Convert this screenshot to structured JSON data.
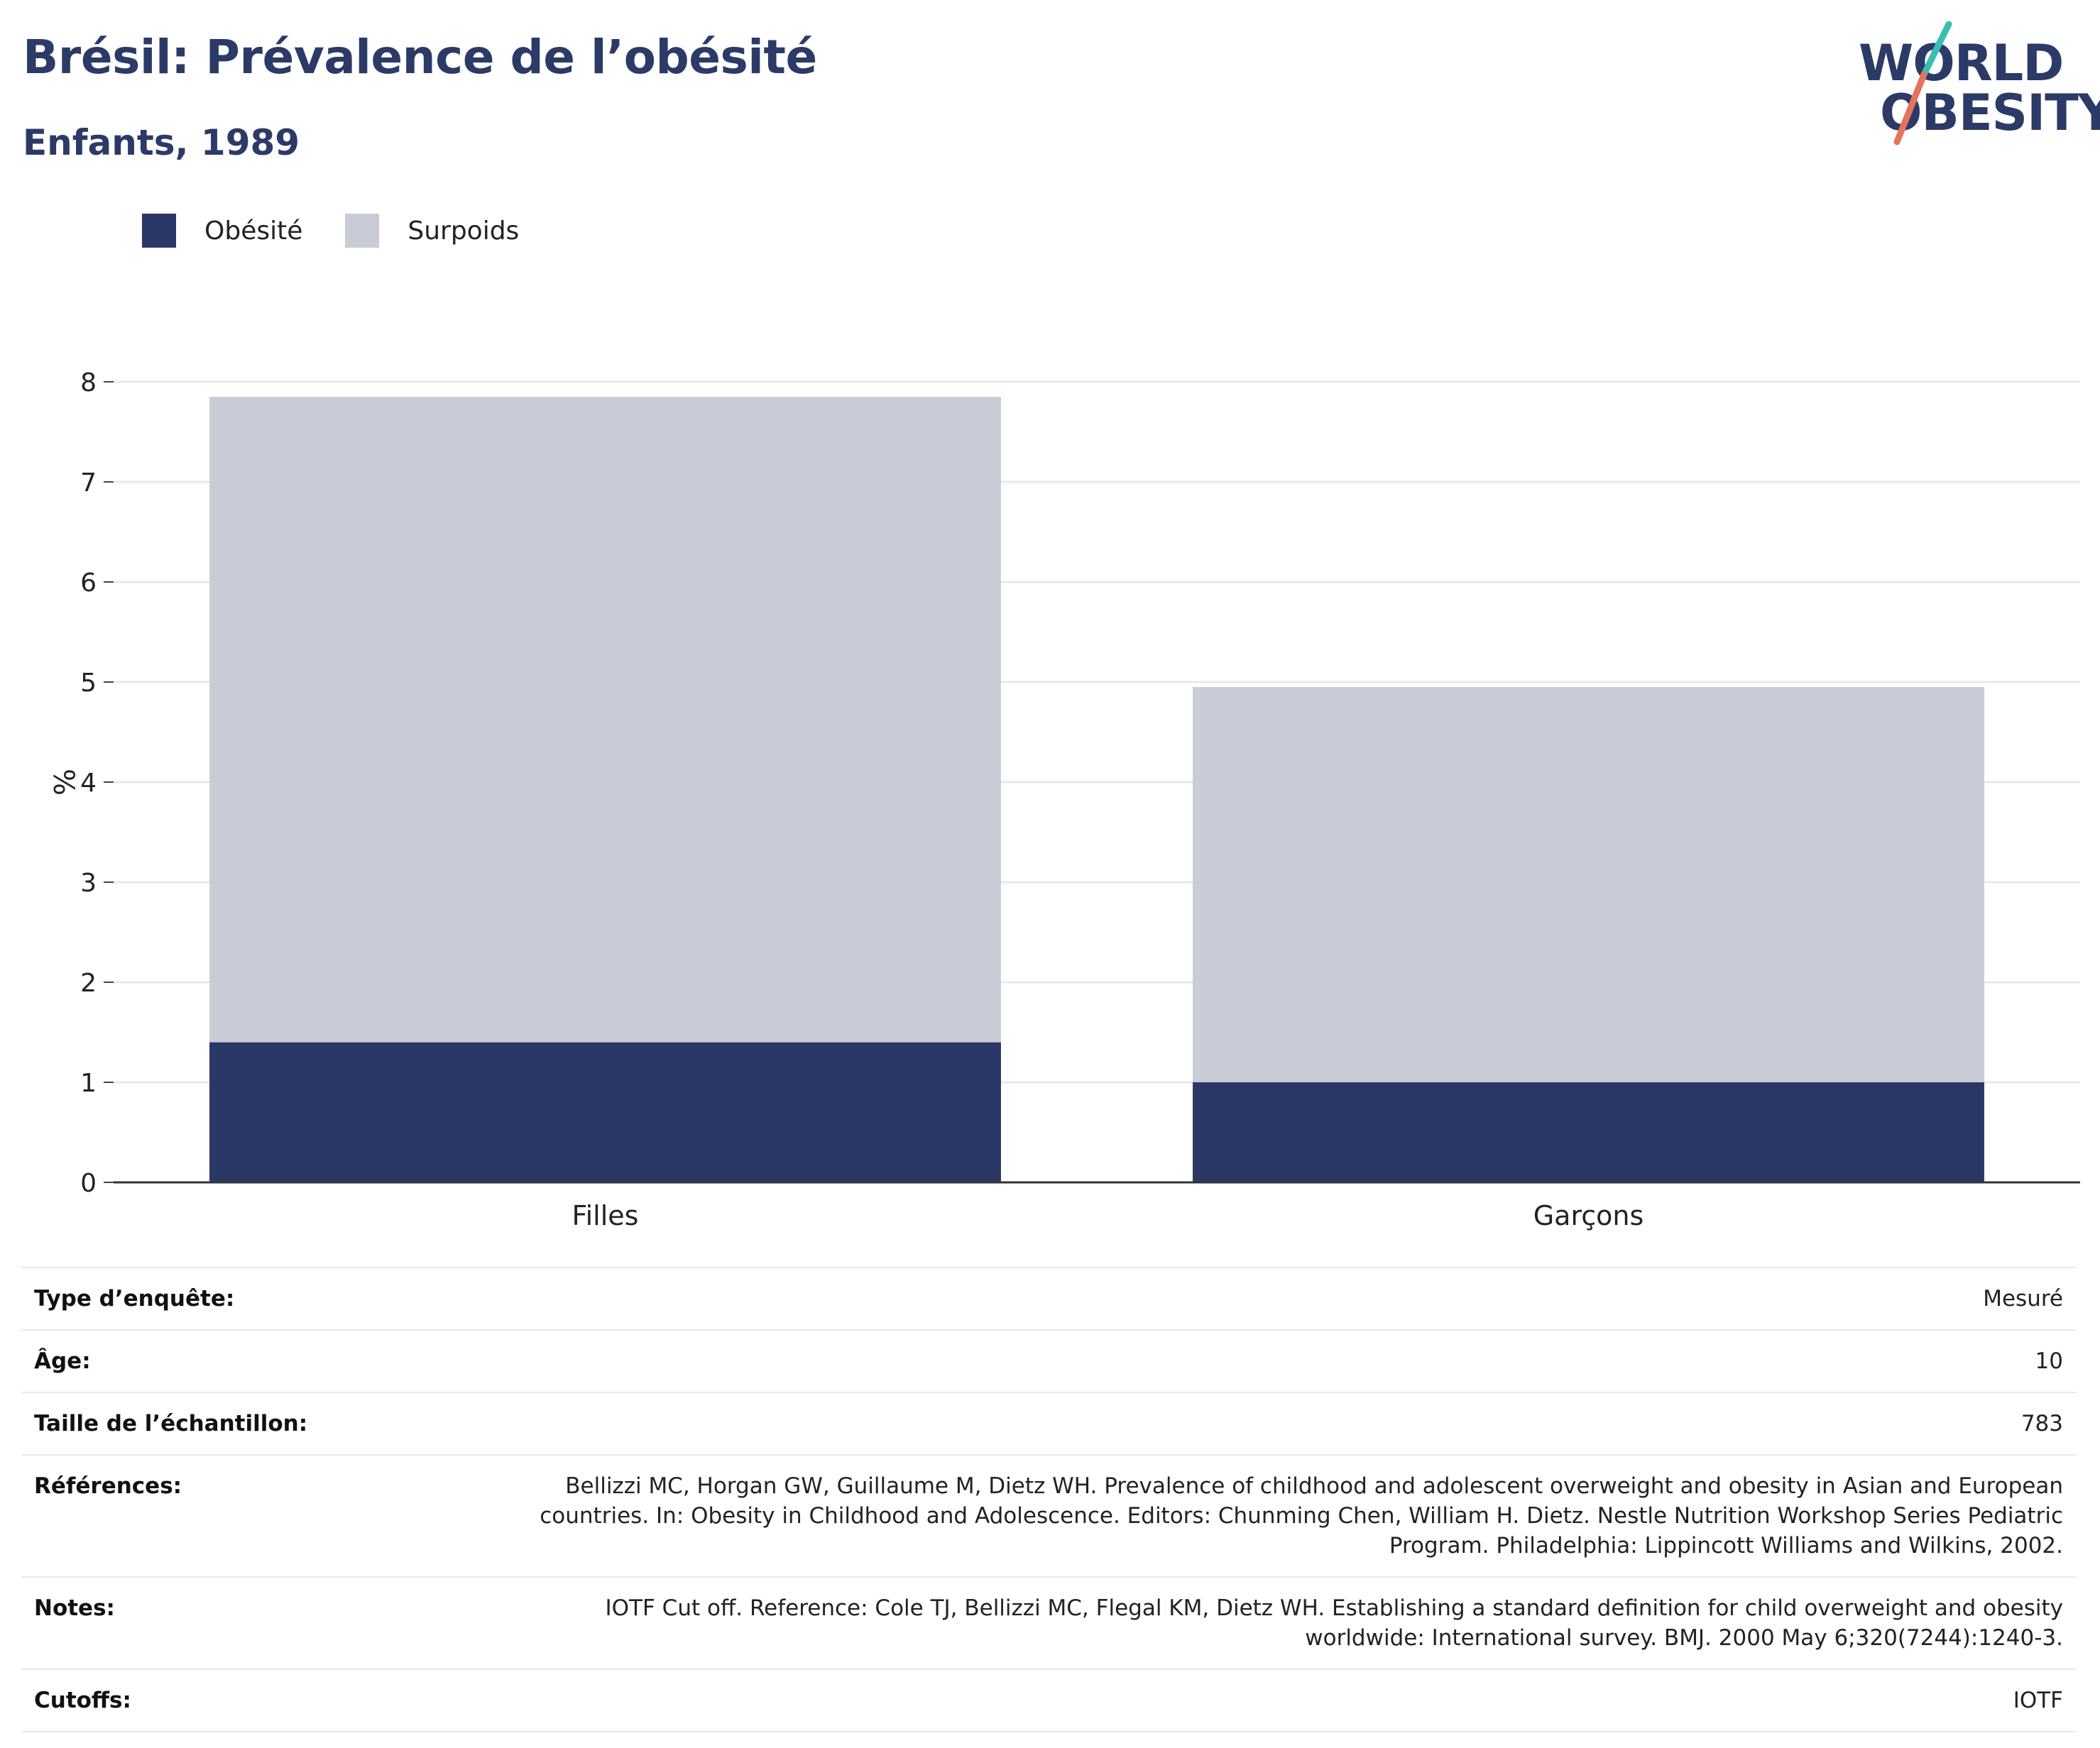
{
  "header": {
    "title": "Brésil: Prévalence de l’obésité",
    "subtitle": "Enfants, 1989"
  },
  "logo": {
    "line1": "WORLD",
    "line2": "OBESITY",
    "colors": {
      "text": "#2b3a67",
      "slash_top": "#3bbdb4",
      "slash_bottom": "#e5735d"
    }
  },
  "colors": {
    "obesite": "#2b3766",
    "surpoids": "#c9ccd7",
    "title": "#2b3a67"
  },
  "chart_data": {
    "type": "bar",
    "stacked": true,
    "categories": [
      "Filles",
      "Garçons"
    ],
    "series": [
      {
        "name": "Obésité",
        "values": [
          1.4,
          1.0
        ]
      },
      {
        "name": "Surpoids",
        "values": [
          6.45,
          3.95
        ]
      }
    ],
    "ylabel": "%",
    "ylim": [
      0,
      8
    ],
    "yticks": [
      0,
      1,
      2,
      3,
      4,
      5,
      6,
      7,
      8
    ],
    "grid": true,
    "legend": "top-left"
  },
  "meta": [
    {
      "label": "Type d’enquête:",
      "value": "Mesuré"
    },
    {
      "label": "Âge:",
      "value": "10"
    },
    {
      "label": "Taille de l’échantillon:",
      "value": "783"
    },
    {
      "label": "Références:",
      "value": "Bellizzi MC, Horgan GW, Guillaume M, Dietz WH. Prevalence of childhood and adolescent overweight and obesity in Asian and European countries. In: Obesity in Childhood and Adolescence. Editors: Chunming Chen, William H. Dietz. Nestle Nutrition Workshop Series Pediatric Program. Philadelphia: Lippincott Williams and Wilkins, 2002."
    },
    {
      "label": "Notes:",
      "value": "IOTF Cut off. Reference: Cole TJ, Bellizzi MC, Flegal KM, Dietz WH. Establishing a standard definition for child overweight and obesity worldwide: International survey. BMJ. 2000 May 6;320(7244):1240-3."
    },
    {
      "label": "Cutoffs:",
      "value": "IOTF"
    }
  ]
}
